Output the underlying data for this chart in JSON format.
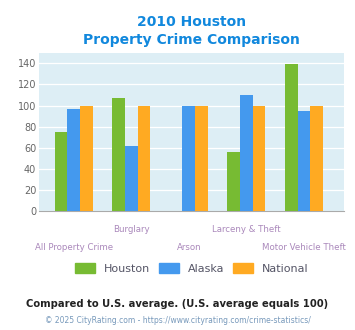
{
  "title_line1": "2010 Houston",
  "title_line2": "Property Crime Comparison",
  "categories": [
    "All Property Crime",
    "Burglary",
    "Arson",
    "Larceny & Theft",
    "Motor Vehicle Theft"
  ],
  "houston": [
    75,
    107,
    null,
    56,
    139
  ],
  "alaska": [
    97,
    62,
    100,
    110,
    95
  ],
  "national": [
    100,
    100,
    100,
    100,
    100
  ],
  "houston_color": "#77bb33",
  "alaska_color": "#4499ee",
  "national_color": "#ffaa22",
  "title_color": "#1188dd",
  "axis_label_color": "#aa88bb",
  "legend_label_color": "#555566",
  "footnote1": "Compared to U.S. average. (U.S. average equals 100)",
  "footnote2": "© 2025 CityRating.com - https://www.cityrating.com/crime-statistics/",
  "footnote1_color": "#222222",
  "footnote2_color": "#7799bb",
  "ylim": [
    0,
    150
  ],
  "yticks": [
    0,
    20,
    40,
    60,
    80,
    100,
    120,
    140
  ],
  "background_color": "#ddeef5",
  "bar_width": 0.22,
  "group_positions": [
    1,
    2,
    3,
    4,
    5
  ],
  "legend_labels": [
    "Houston",
    "Alaska",
    "National"
  ]
}
